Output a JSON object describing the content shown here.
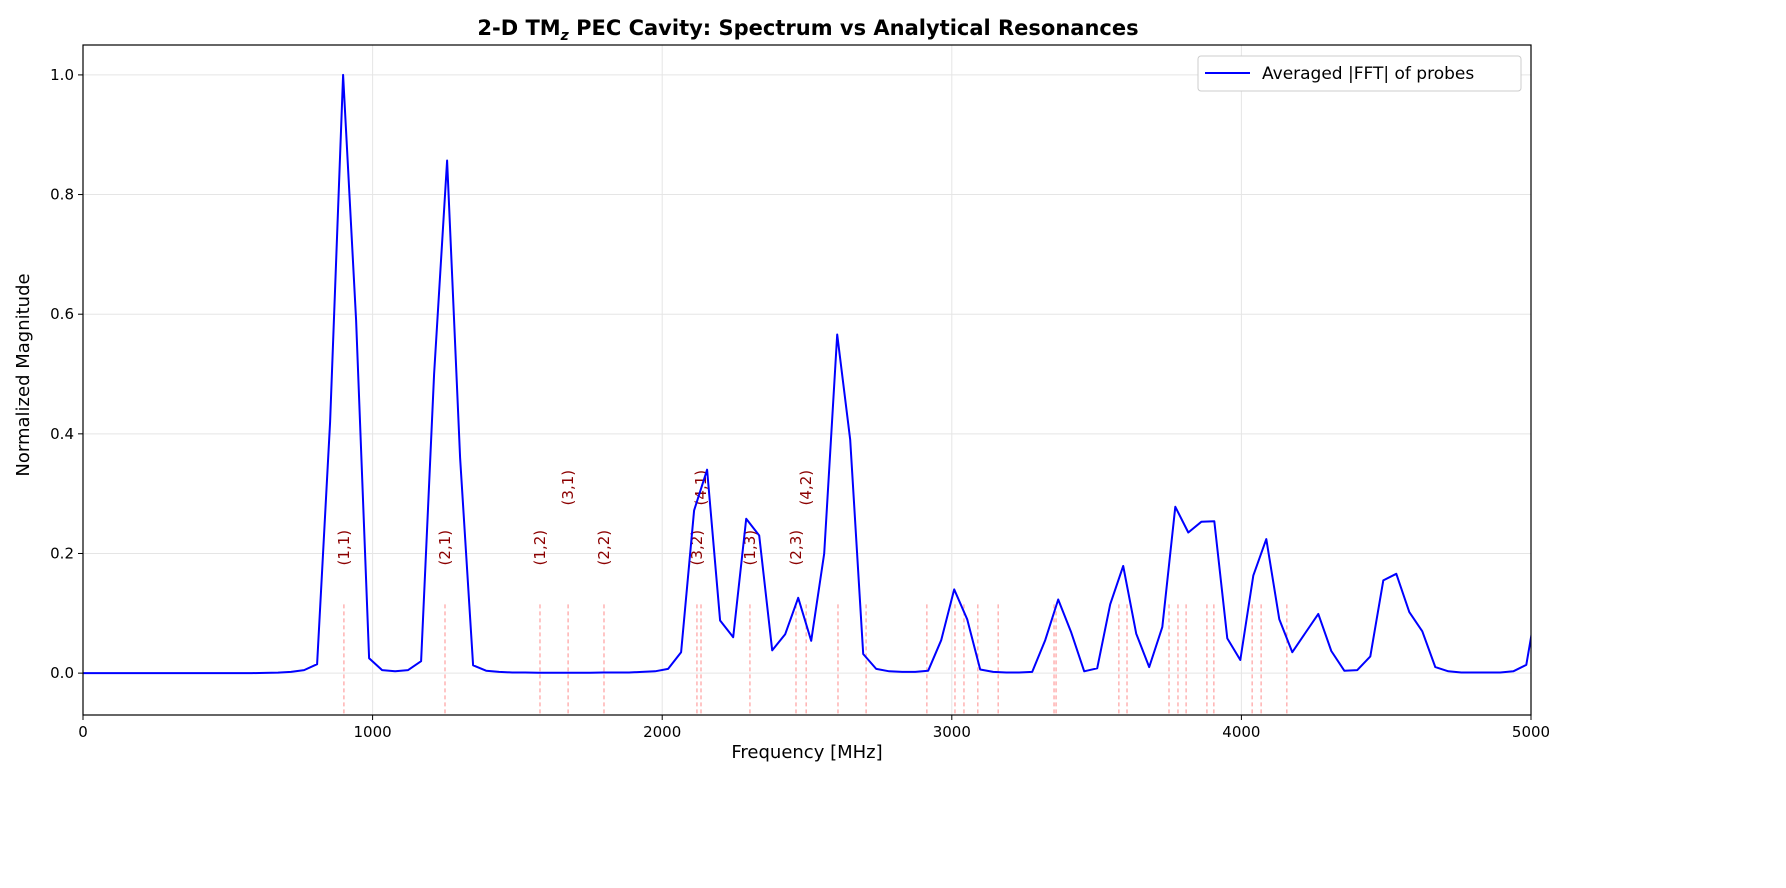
{
  "chart_data": {
    "type": "line",
    "title": {
      "prefix": "2-D TM",
      "subscript": "z",
      "suffix": " PEC Cavity: Spectrum vs Analytical Resonances"
    },
    "xlabel": "Frequency [MHz]",
    "ylabel": "Normalized Magnitude",
    "xlim": [
      0,
      5000
    ],
    "ylim": [
      -0.07,
      1.05
    ],
    "xticks": [
      0,
      1000,
      2000,
      3000,
      4000,
      5000
    ],
    "xtick_labels": [
      "0",
      "1000",
      "2000",
      "3000",
      "4000",
      "5000"
    ],
    "yticks": [
      0.0,
      0.2,
      0.4,
      0.6,
      0.8,
      1.0
    ],
    "ytick_labels": [
      "0.0",
      "0.2",
      "0.4",
      "0.6",
      "0.8",
      "1.0"
    ],
    "grid": true,
    "legend": {
      "placement": "top-right",
      "entries": [
        "Averaged |FFT| of probes"
      ]
    },
    "series": [
      {
        "name": "Averaged |FFT| of probes",
        "color": "#0000ff",
        "x_step_mhz": 44.9,
        "values": [
          0,
          0,
          0,
          0,
          0,
          0,
          0,
          0,
          0,
          0,
          0,
          0,
          0,
          0,
          0.0003,
          0.0008,
          0.002,
          0.005,
          0.015,
          0.42,
          1.0,
          0.59,
          0.025,
          0.005,
          0.003,
          0.005,
          0.02,
          0.5,
          0.857,
          0.36,
          0.013,
          0.004,
          0.002,
          0.001,
          0.001,
          0.0005,
          0.0005,
          0.0005,
          0.0005,
          0.0005,
          0.001,
          0.001,
          0.001,
          0.002,
          0.003,
          0.007,
          0.035,
          0.272,
          0.34,
          0.088,
          0.06,
          0.258,
          0.23,
          0.038,
          0.065,
          0.126,
          0.054,
          0.2,
          0.566,
          0.39,
          0.032,
          0.007,
          0.003,
          0.002,
          0.002,
          0.004,
          0.055,
          0.14,
          0.09,
          0.006,
          0.002,
          0.001,
          0.001,
          0.002,
          0.055,
          0.123,
          0.068,
          0.003,
          0.008,
          0.115,
          0.179,
          0.066,
          0.01,
          0.077,
          0.278,
          0.235,
          0.253,
          0.254,
          0.058,
          0.022,
          0.163,
          0.224,
          0.09,
          0.035,
          0.067,
          0.099,
          0.037,
          0.004,
          0.005,
          0.028,
          0.155,
          0.166,
          0.102,
          0.07,
          0.01,
          0.003,
          0.001,
          0.001,
          0.001,
          0.001,
          0.003,
          0.014,
          0.14
        ]
      }
    ],
    "resonances": {
      "color": "#ff0000",
      "label_color": "#8b0000",
      "marker_top": 0.115,
      "label_level": 0.18,
      "items": [
        {
          "f": 901,
          "label": "(1,1)"
        },
        {
          "f": 1250,
          "label": "(2,1)"
        },
        {
          "f": 1578,
          "label": "(1,2)"
        },
        {
          "f": 1675,
          "label": "(3,1)"
        },
        {
          "f": 1799,
          "label": "(2,2)"
        },
        {
          "f": 2120,
          "label": "(3,2)"
        },
        {
          "f": 2134,
          "label": "(4,1)"
        },
        {
          "f": 2303,
          "label": "(1,3)"
        },
        {
          "f": 2462,
          "label": "(2,3)"
        },
        {
          "f": 2497,
          "label": "(4,2)"
        },
        {
          "f": 2607
        },
        {
          "f": 2704
        },
        {
          "f": 2914
        },
        {
          "f": 3011
        },
        {
          "f": 3042
        },
        {
          "f": 3090
        },
        {
          "f": 3160
        },
        {
          "f": 3353
        },
        {
          "f": 3360
        },
        {
          "f": 3577
        },
        {
          "f": 3605
        },
        {
          "f": 3750
        },
        {
          "f": 3781
        },
        {
          "f": 3809
        },
        {
          "f": 3881
        },
        {
          "f": 3905
        },
        {
          "f": 4037
        },
        {
          "f": 4068
        },
        {
          "f": 4157
        }
      ]
    }
  }
}
